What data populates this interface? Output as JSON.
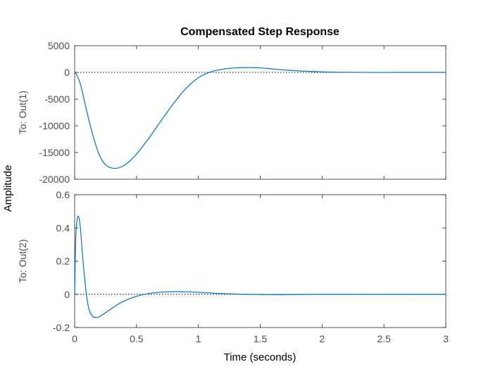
{
  "chart_data": {
    "type": "line",
    "title": "Compensated Step Response",
    "xlabel": "Time (seconds)",
    "shared_ylabel": "Amplitude",
    "xlim": [
      0,
      3
    ],
    "xticks": [
      "0",
      "0.5",
      "1",
      "1.5",
      "2",
      "2.5",
      "3"
    ],
    "grid": false,
    "line_color": "#0072BD",
    "reference_line": {
      "y": 0,
      "style": "dotted"
    },
    "subplots": [
      {
        "ylabel": "To: Out(1)",
        "ylim": [
          -20000,
          5000
        ],
        "yticks": [
          "5000",
          "0",
          "-5000",
          "-10000",
          "-15000",
          "-20000"
        ],
        "x": [
          0,
          0.02,
          0.05,
          0.1,
          0.15,
          0.2,
          0.25,
          0.3,
          0.35,
          0.4,
          0.45,
          0.5,
          0.6,
          0.7,
          0.8,
          0.9,
          1.0,
          1.1,
          1.2,
          1.3,
          1.4,
          1.5,
          1.6,
          1.7,
          1.8,
          2.0,
          2.2,
          2.4,
          2.6,
          2.8,
          3.0
        ],
        "y": [
          0,
          -600,
          -2500,
          -7500,
          -12000,
          -15500,
          -17300,
          -17900,
          -17900,
          -17400,
          -16500,
          -15300,
          -12300,
          -9000,
          -5800,
          -3000,
          -1000,
          100,
          600,
          850,
          900,
          850,
          650,
          450,
          300,
          100,
          20,
          -10,
          0,
          0,
          0
        ]
      },
      {
        "ylabel": "To: Out(2)",
        "ylim": [
          -0.2,
          0.6
        ],
        "yticks": [
          "0.6",
          "0.4",
          "0.2",
          "0",
          "-0.2"
        ],
        "x": [
          0,
          0.005,
          0.01,
          0.02,
          0.03,
          0.04,
          0.05,
          0.06,
          0.08,
          0.1,
          0.12,
          0.15,
          0.18,
          0.2,
          0.25,
          0.3,
          0.35,
          0.4,
          0.5,
          0.6,
          0.7,
          0.8,
          0.9,
          1.0,
          1.1,
          1.2,
          1.4,
          1.6,
          1.8,
          2.0,
          2.5,
          3.0
        ],
        "y": [
          0,
          0.22,
          0.36,
          0.45,
          0.47,
          0.44,
          0.37,
          0.27,
          0.1,
          -0.03,
          -0.1,
          -0.135,
          -0.14,
          -0.135,
          -0.11,
          -0.085,
          -0.06,
          -0.04,
          -0.012,
          0.005,
          0.013,
          0.016,
          0.015,
          0.012,
          0.008,
          0.004,
          0.0,
          -0.002,
          -0.001,
          0,
          0,
          0
        ]
      }
    ]
  }
}
